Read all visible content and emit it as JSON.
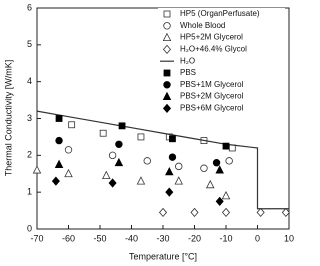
{
  "chart_data": {
    "type": "scatter",
    "x_label": "Temperature [°C]",
    "y_label": "Thermal Conductivity [W/mK]",
    "xlim": [
      -70,
      10
    ],
    "ylim": [
      0,
      6
    ],
    "xticks": [
      -70,
      -60,
      -50,
      -40,
      -30,
      -20,
      -10,
      0,
      10
    ],
    "yticks": [
      0,
      1,
      2,
      3,
      4,
      5,
      6
    ],
    "legend": "upper right",
    "series": [
      {
        "name": "HP5 (OrganPerfusate)",
        "marker": "square",
        "filled": false,
        "color": "#333333",
        "x": [
          -59,
          -49,
          -37,
          -28,
          -17,
          -8
        ],
        "values": [
          2.83,
          2.6,
          2.5,
          2.5,
          2.4,
          2.2
        ]
      },
      {
        "name": "Whole Blood",
        "marker": "circle",
        "filled": false,
        "color": "#333333",
        "x": [
          -60,
          -46,
          -35,
          -25,
          -17,
          -9
        ],
        "values": [
          2.15,
          2.0,
          1.85,
          1.7,
          1.65,
          1.85
        ]
      },
      {
        "name": "HP5+2M Glycerol",
        "marker": "triangle",
        "filled": false,
        "color": "#333333",
        "x": [
          -70,
          -60,
          -48,
          -37,
          -25,
          -15,
          -10
        ],
        "values": [
          1.6,
          1.5,
          1.45,
          1.3,
          1.3,
          1.2,
          0.9
        ]
      },
      {
        "name": "H₂O+46.4% Glycol",
        "marker": "diamond",
        "filled": false,
        "color": "#333333",
        "x": [
          -30,
          -20,
          -10,
          1,
          9
        ],
        "values": [
          0.45,
          0.45,
          0.45,
          0.45,
          0.45
        ]
      },
      {
        "name": "H₂O",
        "marker": "line",
        "filled": false,
        "color": "#333333",
        "x": [
          -70,
          -60,
          -50,
          -40,
          -30,
          -20,
          -10,
          0,
          0,
          10
        ],
        "values": [
          3.2,
          3.05,
          2.9,
          2.75,
          2.6,
          2.45,
          2.3,
          2.2,
          0.55,
          0.55
        ]
      },
      {
        "name": "PBS",
        "marker": "square",
        "filled": true,
        "color": "#000000",
        "x": [
          -63,
          -43,
          -27,
          -10
        ],
        "values": [
          3.0,
          2.8,
          2.45,
          2.25
        ]
      },
      {
        "name": "PBS+1M Glycerol",
        "marker": "circle",
        "filled": true,
        "color": "#000000",
        "x": [
          -63,
          -44,
          -27,
          -13
        ],
        "values": [
          2.4,
          2.3,
          1.95,
          1.8
        ]
      },
      {
        "name": "PBS+2M Glycerol",
        "marker": "triangle",
        "filled": true,
        "color": "#000000",
        "x": [
          -63,
          -44,
          -28,
          -12
        ],
        "values": [
          1.75,
          1.8,
          1.55,
          1.6
        ]
      },
      {
        "name": "PBS+6M Glycerol",
        "marker": "diamond",
        "filled": true,
        "color": "#000000",
        "x": [
          -64,
          -46,
          -28,
          -12
        ],
        "values": [
          1.3,
          1.25,
          1.0,
          0.75
        ]
      }
    ]
  }
}
